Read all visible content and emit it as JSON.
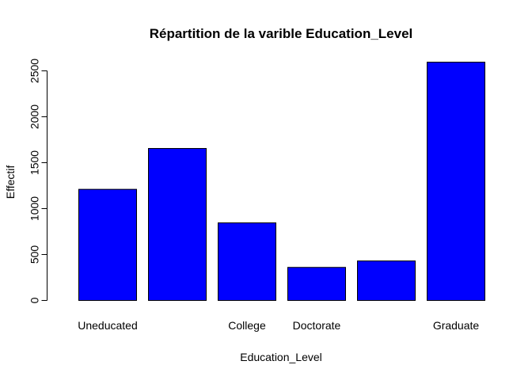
{
  "chart_data": {
    "type": "bar",
    "title": "Répartition de la varible Education_Level",
    "xlabel": "Education_Level",
    "ylabel": "Effectif",
    "categories": [
      "Uneducated",
      "",
      "College",
      "Doctorate",
      "",
      "Graduate"
    ],
    "values": [
      1210,
      1655,
      845,
      360,
      430,
      2595
    ],
    "ylim": [
      0,
      2600
    ],
    "yticks": [
      0,
      500,
      1000,
      1500,
      2000,
      2500
    ],
    "grid": false,
    "legend": "none",
    "bar_color": "#0000ff",
    "bar_border_color": "#000000"
  }
}
